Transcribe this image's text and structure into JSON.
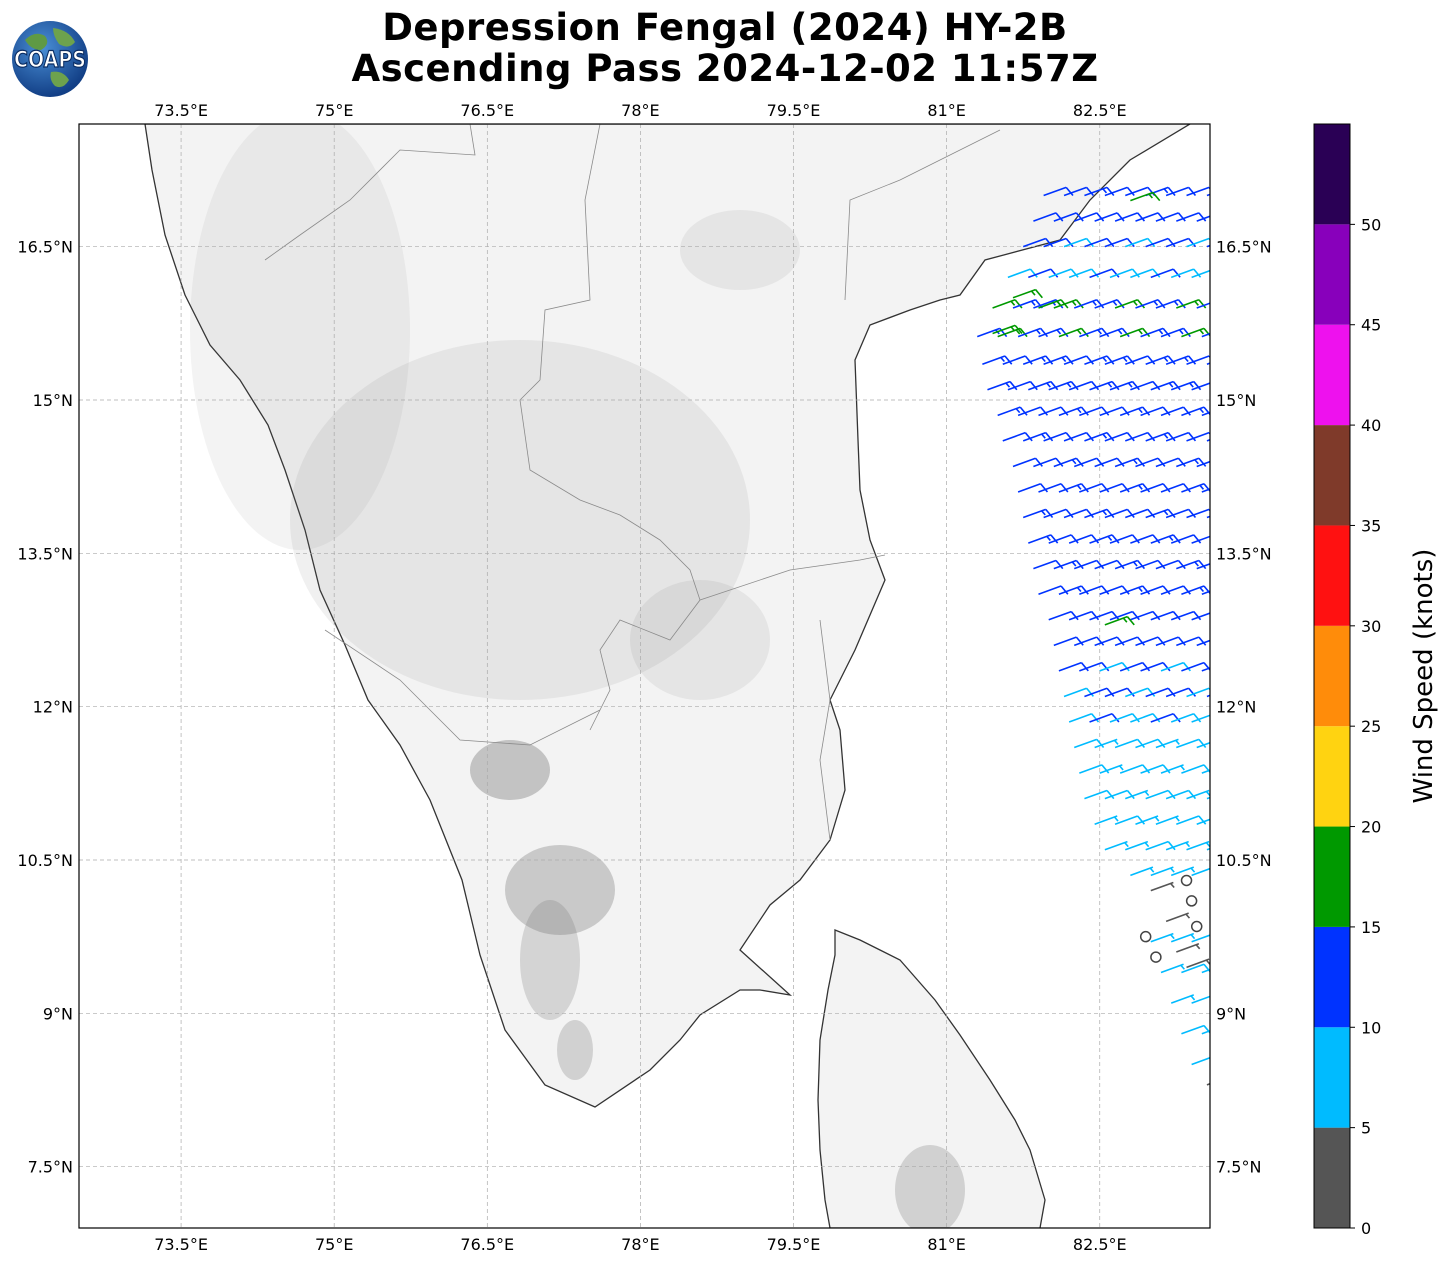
{
  "title": {
    "line1": "Depression Fengal (2024) HY-2B",
    "line2": "Ascending Pass 2024-12-02 11:57Z"
  },
  "logo": {
    "text": "COAPS",
    "icon": "globe-logo-icon"
  },
  "map": {
    "lon_range": [
      72.5,
      83.58
    ],
    "lat_range": [
      6.9,
      17.7
    ],
    "lon_ticks": [
      {
        "value": 73.5,
        "label": "73.5°E"
      },
      {
        "value": 75.0,
        "label": "75°E"
      },
      {
        "value": 76.5,
        "label": "76.5°E"
      },
      {
        "value": 78.0,
        "label": "78°E"
      },
      {
        "value": 79.5,
        "label": "79.5°E"
      },
      {
        "value": 81.0,
        "label": "81°E"
      },
      {
        "value": 82.5,
        "label": "82.5°E"
      }
    ],
    "lat_ticks": [
      {
        "value": 16.5,
        "label": "16.5°N"
      },
      {
        "value": 15.0,
        "label": "15°N"
      },
      {
        "value": 13.5,
        "label": "13.5°N"
      },
      {
        "value": 12.0,
        "label": "12°N"
      },
      {
        "value": 10.5,
        "label": "10.5°N"
      },
      {
        "value": 9.0,
        "label": "9°N"
      },
      {
        "value": 7.5,
        "label": "7.5°N"
      }
    ],
    "gridlines": true,
    "land_color": "#f4f4f4",
    "ocean_color": "#ffffff",
    "coast_color": "#333333"
  },
  "chart_data": {
    "type": "wind-barbs",
    "swath": "HY-2B ascending pass",
    "direction_deg_from": 70,
    "rows": [
      {
        "lat": 17.0,
        "lon_start": 81.95,
        "lon_end": 83.6,
        "speed": 12
      },
      {
        "lat": 16.75,
        "lon_start": 81.85,
        "lon_end": 83.6,
        "speed": 11
      },
      {
        "lat": 16.5,
        "lon_start": 81.75,
        "lon_end": 83.6,
        "speed": 10
      },
      {
        "lat": 16.2,
        "lon_start": 81.6,
        "lon_end": 83.6,
        "speed": 9
      },
      {
        "lat": 15.9,
        "lon_start": 81.45,
        "lon_end": 83.6,
        "speed": 14
      },
      {
        "lat": 15.62,
        "lon_start": 81.3,
        "lon_end": 83.6,
        "speed": 14
      },
      {
        "lat": 15.35,
        "lon_start": 81.35,
        "lon_end": 83.6,
        "speed": 13
      },
      {
        "lat": 15.1,
        "lon_start": 81.4,
        "lon_end": 83.6,
        "speed": 13
      },
      {
        "lat": 14.85,
        "lon_start": 81.5,
        "lon_end": 83.6,
        "speed": 12
      },
      {
        "lat": 14.6,
        "lon_start": 81.55,
        "lon_end": 83.6,
        "speed": 12
      },
      {
        "lat": 14.35,
        "lon_start": 81.65,
        "lon_end": 83.6,
        "speed": 12
      },
      {
        "lat": 14.1,
        "lon_start": 81.7,
        "lon_end": 83.6,
        "speed": 12
      },
      {
        "lat": 13.85,
        "lon_start": 81.75,
        "lon_end": 83.6,
        "speed": 12
      },
      {
        "lat": 13.6,
        "lon_start": 81.8,
        "lon_end": 83.6,
        "speed": 12
      },
      {
        "lat": 13.35,
        "lon_start": 81.85,
        "lon_end": 83.6,
        "speed": 12
      },
      {
        "lat": 13.1,
        "lon_start": 81.9,
        "lon_end": 83.6,
        "speed": 12
      },
      {
        "lat": 12.85,
        "lon_start": 82.0,
        "lon_end": 83.6,
        "speed": 11
      },
      {
        "lat": 12.6,
        "lon_start": 82.05,
        "lon_end": 83.6,
        "speed": 11
      },
      {
        "lat": 12.35,
        "lon_start": 82.1,
        "lon_end": 83.6,
        "speed": 10
      },
      {
        "lat": 12.1,
        "lon_start": 82.15,
        "lon_end": 83.6,
        "speed": 10
      },
      {
        "lat": 11.85,
        "lon_start": 82.2,
        "lon_end": 83.6,
        "speed": 9
      },
      {
        "lat": 11.6,
        "lon_start": 82.25,
        "lon_end": 83.6,
        "speed": 8
      },
      {
        "lat": 11.35,
        "lon_start": 82.3,
        "lon_end": 83.6,
        "speed": 8
      },
      {
        "lat": 11.1,
        "lon_start": 82.35,
        "lon_end": 83.6,
        "speed": 8
      },
      {
        "lat": 10.85,
        "lon_start": 82.45,
        "lon_end": 83.6,
        "speed": 7
      },
      {
        "lat": 10.6,
        "lon_start": 82.55,
        "lon_end": 83.6,
        "speed": 7
      },
      {
        "lat": 10.35,
        "lon_start": 82.8,
        "lon_end": 83.6,
        "speed": 6
      },
      {
        "lat": 9.7,
        "lon_start": 83.0,
        "lon_end": 83.6,
        "speed": 6
      },
      {
        "lat": 9.4,
        "lon_start": 83.1,
        "lon_end": 83.6,
        "speed": 7
      },
      {
        "lat": 9.1,
        "lon_start": 83.2,
        "lon_end": 83.6,
        "speed": 7
      },
      {
        "lat": 8.8,
        "lon_start": 83.3,
        "lon_end": 83.6,
        "speed": 7
      },
      {
        "lat": 8.5,
        "lon_start": 83.4,
        "lon_end": 83.6,
        "speed": 7
      }
    ],
    "green_barbs": [
      {
        "lat": 16.95,
        "lon": 82.8,
        "speed": 17
      },
      {
        "lat": 16.0,
        "lon": 81.65,
        "speed": 17
      },
      {
        "lat": 15.9,
        "lon": 81.9,
        "speed": 17
      },
      {
        "lat": 15.65,
        "lon": 81.45,
        "speed": 16
      },
      {
        "lat": 12.8,
        "lon": 82.55,
        "speed": 16
      }
    ],
    "calm_points": [
      {
        "lat": 10.3,
        "lon": 83.35
      },
      {
        "lat": 10.1,
        "lon": 83.4
      },
      {
        "lat": 9.85,
        "lon": 83.45
      },
      {
        "lat": 9.75,
        "lon": 82.95
      },
      {
        "lat": 9.55,
        "lon": 83.05
      }
    ],
    "calm_barbs": [
      {
        "lat": 10.2,
        "lon": 83.0,
        "speed": 3
      },
      {
        "lat": 9.9,
        "lon": 83.15,
        "speed": 3
      },
      {
        "lat": 9.6,
        "lon": 83.25,
        "speed": 3
      },
      {
        "lat": 9.45,
        "lon": 83.35,
        "speed": 3
      },
      {
        "lat": 8.3,
        "lon": 83.55,
        "speed": 3
      }
    ]
  },
  "colorbar": {
    "label": "Wind Speed (knots)",
    "vmin": 0,
    "vmax": 55,
    "ticks": [
      "0",
      "5",
      "10",
      "15",
      "20",
      "25",
      "30",
      "35",
      "40",
      "45",
      "50"
    ],
    "bins": [
      {
        "from": 0,
        "to": 5,
        "color": "#555555"
      },
      {
        "from": 5,
        "to": 10,
        "color": "#00bbff"
      },
      {
        "from": 10,
        "to": 15,
        "color": "#0033ff"
      },
      {
        "from": 15,
        "to": 20,
        "color": "#009900"
      },
      {
        "from": 20,
        "to": 25,
        "color": "#ffd311"
      },
      {
        "from": 25,
        "to": 30,
        "color": "#ff8c0a"
      },
      {
        "from": 30,
        "to": 35,
        "color": "#ff1111"
      },
      {
        "from": 35,
        "to": 40,
        "color": "#7f3a2a"
      },
      {
        "from": 40,
        "to": 45,
        "color": "#ee11ee"
      },
      {
        "from": 45,
        "to": 50,
        "color": "#8800bb"
      },
      {
        "from": 50,
        "to": 55,
        "color": "#2a0055"
      }
    ]
  }
}
